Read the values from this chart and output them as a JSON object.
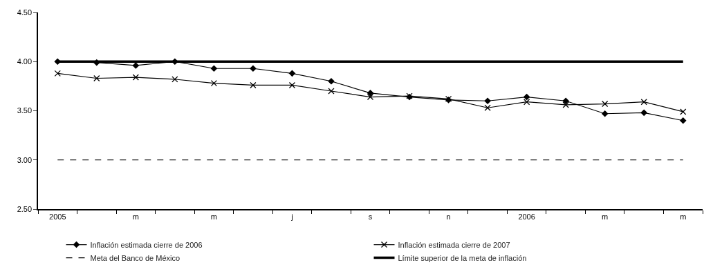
{
  "chart_data": {
    "type": "line",
    "categories": [
      "2005",
      null,
      "m",
      null,
      "m",
      null,
      "j",
      null,
      "s",
      null,
      "n",
      null,
      "2006",
      null,
      "m",
      null,
      "m"
    ],
    "series": [
      {
        "name": "Inflación estimada cierre de 2006",
        "color": "#000000",
        "marker": "diamond",
        "line_style": "solid",
        "values": [
          4.0,
          3.99,
          3.96,
          4.0,
          3.93,
          3.93,
          3.88,
          3.8,
          3.68,
          3.64,
          3.61,
          3.6,
          3.64,
          3.6,
          3.47,
          3.48,
          3.4
        ]
      },
      {
        "name": "Inflación estimada cierre de 2007",
        "color": "#000000",
        "marker": "cross",
        "line_style": "solid",
        "values": [
          3.88,
          3.83,
          3.84,
          3.82,
          3.78,
          3.76,
          3.76,
          3.7,
          3.64,
          3.65,
          3.62,
          3.53,
          3.59,
          3.56,
          3.57,
          3.59,
          3.49
        ]
      },
      {
        "name": "Meta del Banco de México",
        "color": "#000000",
        "marker": "none",
        "line_style": "dashed",
        "values": [
          3.0,
          3.0,
          3.0,
          3.0,
          3.0,
          3.0,
          3.0,
          3.0,
          3.0,
          3.0,
          3.0,
          3.0,
          3.0,
          3.0,
          3.0,
          3.0,
          3.0
        ]
      },
      {
        "name": "Límite superior de la meta de inflación",
        "color": "#000000",
        "marker": "none",
        "line_style": "solid",
        "values": [
          4.0,
          4.0,
          4.0,
          4.0,
          4.0,
          4.0,
          4.0,
          4.0,
          4.0,
          4.0,
          4.0,
          4.0,
          4.0,
          4.0,
          4.0,
          4.0,
          4.0
        ]
      }
    ],
    "ylim": [
      2.5,
      4.5
    ],
    "yticks": [
      {
        "value": 2.5,
        "label": "2.50"
      },
      {
        "value": 3.0,
        "label": "3.00"
      },
      {
        "value": 3.5,
        "label": "3.50"
      },
      {
        "value": 4.0,
        "label": "4.00"
      },
      {
        "value": 4.5,
        "label": "4.50"
      }
    ],
    "legend": "bottom"
  }
}
